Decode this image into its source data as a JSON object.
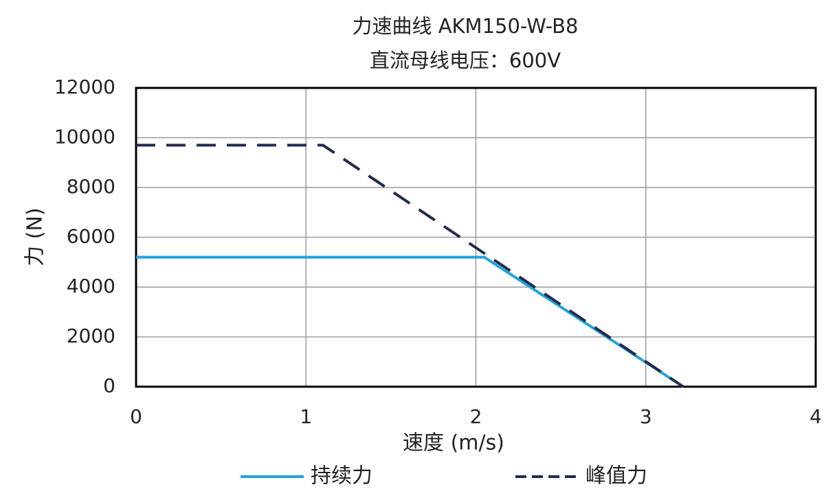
{
  "chart_data": {
    "type": "line",
    "title": "力速曲线 AKM150-W-B8",
    "subtitle": "直流母线电压：600V",
    "x_label": "速度 (m/s)",
    "y_label": "力 (N)",
    "xlim": [
      0,
      4
    ],
    "xticks": [
      0,
      1,
      2,
      3,
      4
    ],
    "ylim": [
      0,
      12000
    ],
    "yticks": [
      0,
      2000,
      4000,
      6000,
      8000,
      10000,
      12000
    ],
    "grid": true,
    "series": [
      {
        "name": "持续力",
        "color": "#1fa3dc",
        "dash": false,
        "x": [
          0,
          2.05,
          3.22
        ],
        "values": [
          5200,
          5200,
          0
        ]
      },
      {
        "name": "峰值力",
        "color": "#232a4e",
        "dash": true,
        "x": [
          0,
          1.1,
          3.22
        ],
        "values": [
          9700,
          9700,
          0
        ]
      }
    ]
  }
}
